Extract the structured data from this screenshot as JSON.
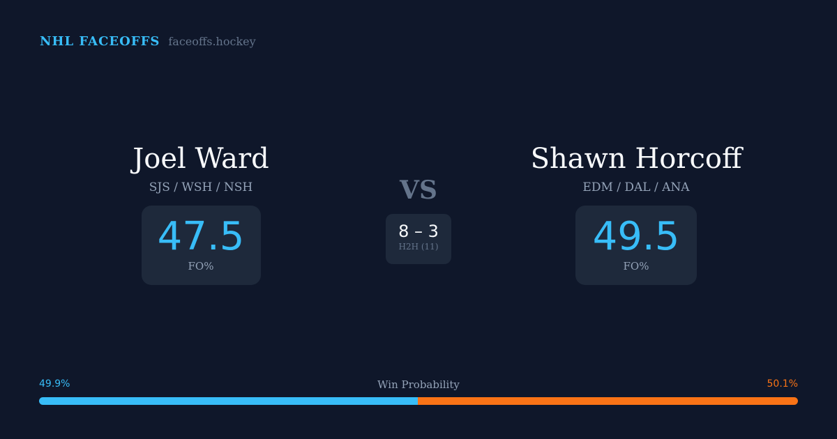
{
  "brand": {
    "name": "NHL FACEOFFS",
    "url": "faceoffs.hockey"
  },
  "player1": {
    "name": "Joel Ward",
    "teams": "SJS / WSH / NSH",
    "fo_pct": "47.5",
    "fo_label": "FO%"
  },
  "player2": {
    "name": "Shawn Horcoff",
    "teams": "EDM / DAL / ANA",
    "fo_pct": "49.5",
    "fo_label": "FO%"
  },
  "vs": "VS",
  "h2h": {
    "score": "8 – 3",
    "label": "H2H (11)"
  },
  "win_probability": {
    "title": "Win Probability",
    "left": "49.9%",
    "right": "50.1%",
    "left_value": 49.9,
    "left_color": "#38bdf8",
    "right_color": "#f97316"
  }
}
